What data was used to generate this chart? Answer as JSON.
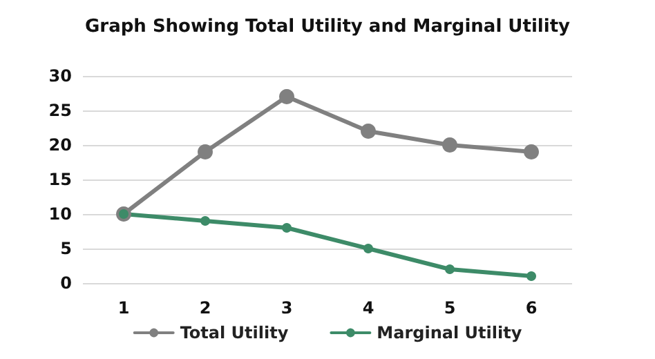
{
  "chart_data": {
    "type": "line",
    "title": "Graph Showing Total Utility and Marginal Utility",
    "categories": [
      "1",
      "2",
      "3",
      "4",
      "5",
      "6"
    ],
    "series": [
      {
        "name": "Total Utility",
        "color": "#808080",
        "values": [
          10,
          19,
          27,
          22,
          20,
          19
        ]
      },
      {
        "name": "Marginal Utility",
        "color": "#3d8b68",
        "values": [
          10,
          9,
          8,
          5,
          2,
          1
        ]
      }
    ],
    "ylim": [
      0,
      30
    ],
    "yticks": [
      0,
      5,
      10,
      15,
      20,
      25,
      30
    ],
    "grid": "y",
    "legend": "bottom",
    "marker": "circle",
    "line_style": "solid"
  }
}
